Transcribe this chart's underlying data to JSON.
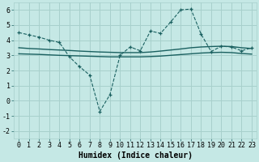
{
  "xlabel": "Humidex (Indice chaleur)",
  "ylabel": "",
  "bg_color": "#c5e8e5",
  "grid_color": "#a8d0cc",
  "line_color": "#1a6060",
  "xlim": [
    -0.5,
    23.5
  ],
  "ylim": [
    -2.5,
    6.5
  ],
  "xticks": [
    0,
    1,
    2,
    3,
    4,
    5,
    6,
    7,
    8,
    9,
    10,
    11,
    12,
    13,
    14,
    15,
    16,
    17,
    18,
    19,
    20,
    21,
    22,
    23
  ],
  "yticks": [
    -2,
    -1,
    0,
    1,
    2,
    3,
    4,
    5,
    6
  ],
  "curve1_x": [
    0,
    1,
    2,
    3,
    4,
    5,
    6,
    7,
    8,
    9,
    10,
    11,
    12,
    13,
    14,
    15,
    16,
    17,
    18,
    19,
    20,
    21,
    22,
    23
  ],
  "curve1_y": [
    4.5,
    4.35,
    4.2,
    4.0,
    3.85,
    2.9,
    2.25,
    1.7,
    -0.7,
    0.4,
    3.0,
    3.55,
    3.3,
    4.6,
    4.45,
    5.2,
    6.0,
    6.05,
    4.4,
    3.25,
    3.6,
    3.55,
    3.3,
    3.5
  ],
  "curve2_x": [
    0,
    1,
    2,
    3,
    4,
    5,
    6,
    7,
    8,
    9,
    10,
    11,
    12,
    13,
    14,
    15,
    16,
    17,
    18,
    19,
    20,
    21,
    22,
    23
  ],
  "curve2_y": [
    3.5,
    3.45,
    3.42,
    3.38,
    3.35,
    3.32,
    3.28,
    3.25,
    3.22,
    3.2,
    3.18,
    3.18,
    3.18,
    3.22,
    3.28,
    3.35,
    3.42,
    3.5,
    3.55,
    3.58,
    3.6,
    3.58,
    3.5,
    3.45
  ],
  "curve3_x": [
    0,
    1,
    2,
    3,
    4,
    5,
    6,
    7,
    8,
    9,
    10,
    11,
    12,
    13,
    14,
    15,
    16,
    17,
    18,
    19,
    20,
    21,
    22,
    23
  ],
  "curve3_y": [
    3.1,
    3.08,
    3.06,
    3.03,
    3.0,
    2.98,
    2.96,
    2.94,
    2.92,
    2.9,
    2.9,
    2.9,
    2.9,
    2.92,
    2.95,
    3.0,
    3.05,
    3.1,
    3.15,
    3.18,
    3.2,
    3.18,
    3.12,
    3.08
  ],
  "tick_fontsize": 6,
  "xlabel_fontsize": 7
}
